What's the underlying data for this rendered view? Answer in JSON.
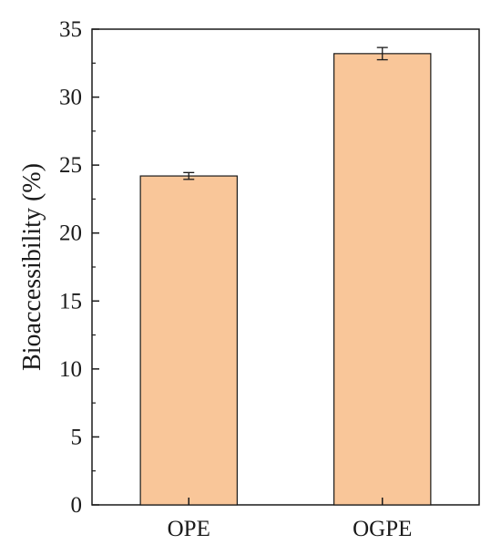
{
  "chart_data": {
    "type": "bar",
    "categories": [
      "OPE",
      "OGPE"
    ],
    "values": [
      24.2,
      33.2
    ],
    "errors": [
      0.25,
      0.45
    ],
    "ylabel": "Bioaccessibility (%)",
    "xlabel": "",
    "ylim": [
      0,
      35
    ],
    "yticks": [
      0,
      5,
      10,
      15,
      20,
      25,
      30,
      35
    ],
    "ytick_labels": [
      "0",
      "5",
      "10",
      "15",
      "20",
      "25",
      "30",
      "35"
    ],
    "grid": false,
    "bar_color": "#f9c699",
    "edge_color": "#1a1a1a"
  }
}
